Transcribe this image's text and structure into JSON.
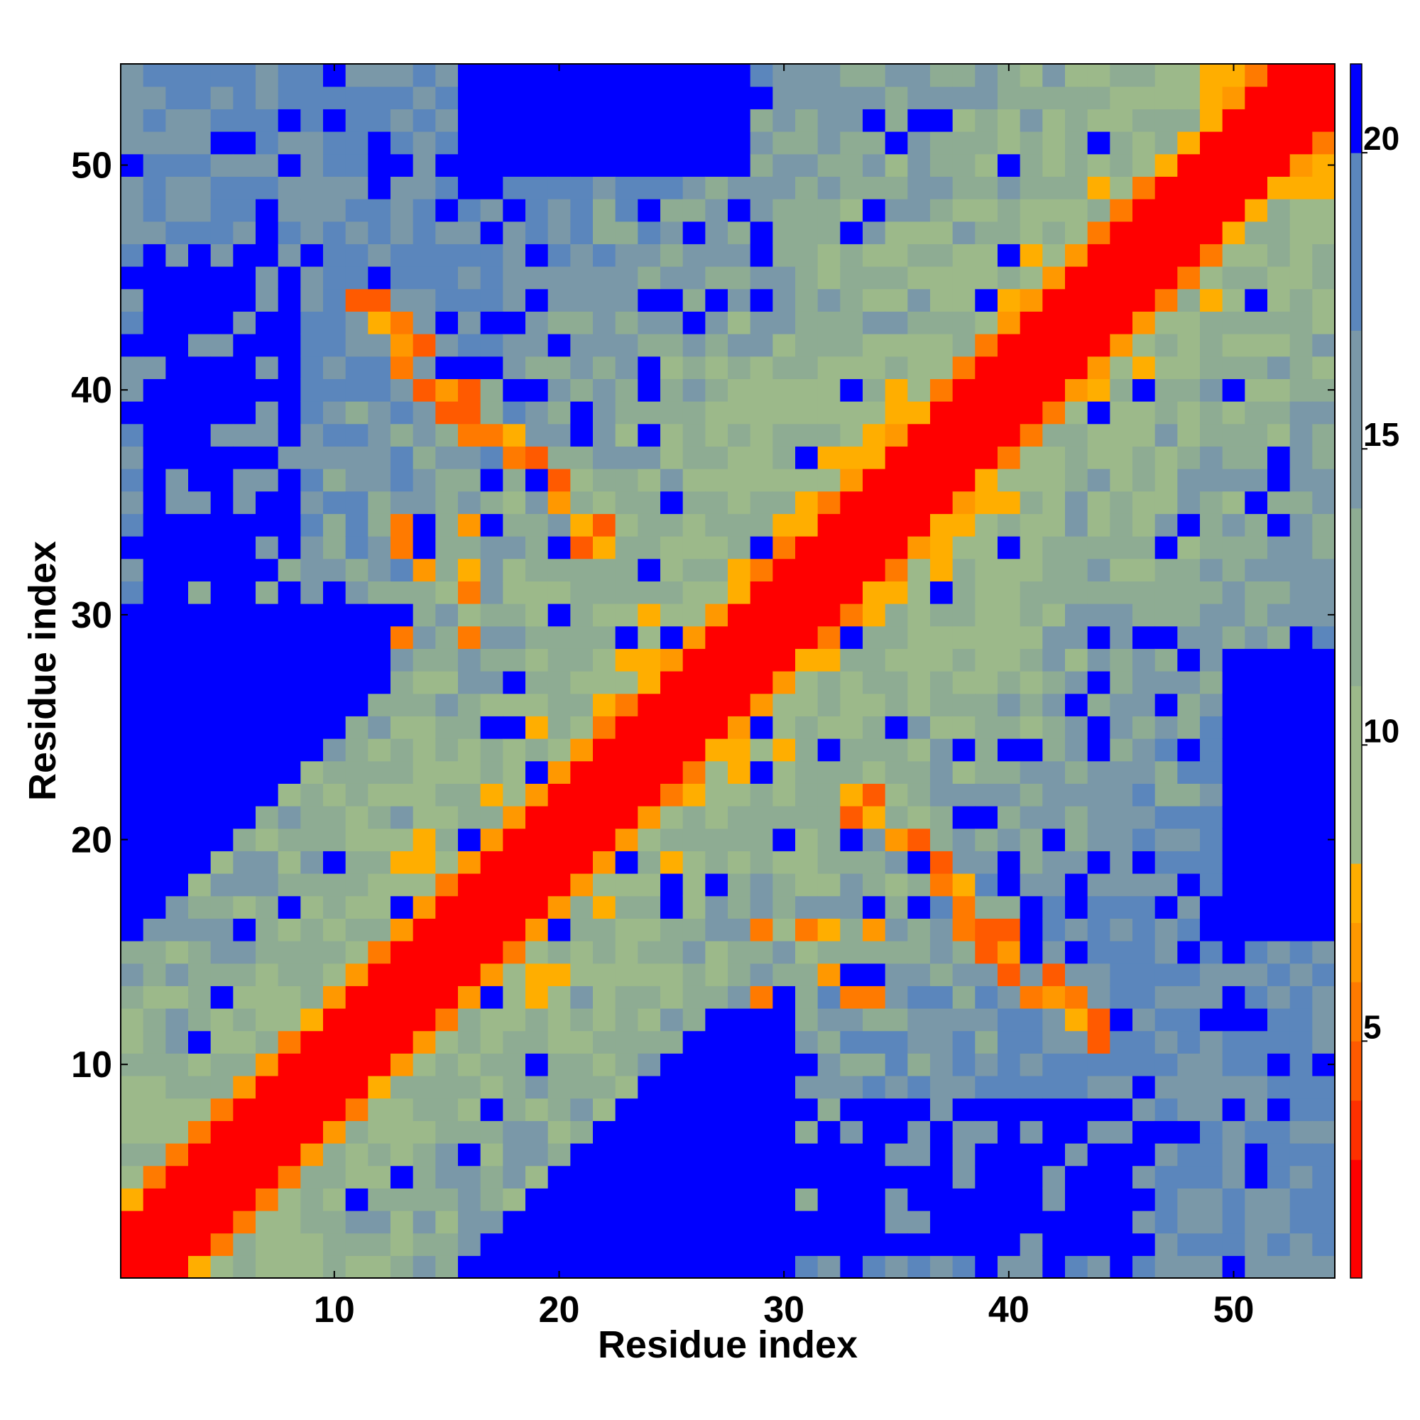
{
  "chart_data": {
    "type": "heatmap",
    "title": "",
    "xlabel": "Residue index",
    "ylabel": "Residue index",
    "n": 54,
    "xlim": [
      0.5,
      54.5
    ],
    "ylim": [
      0.5,
      54.5
    ],
    "x_ticks": [
      10,
      20,
      30,
      40,
      50
    ],
    "y_ticks": [
      10,
      20,
      30,
      40,
      50
    ],
    "colorbar": {
      "ticks": [
        5,
        10,
        15,
        20
      ],
      "range": [
        1,
        21.5
      ],
      "bands": [
        {
          "upper": 3,
          "color": "#ff0000"
        },
        {
          "upper": 4,
          "color": "#ff3000"
        },
        {
          "upper": 5,
          "color": "#ff5a00"
        },
        {
          "upper": 6,
          "color": "#ff7a00"
        },
        {
          "upper": 7,
          "color": "#ff9800"
        },
        {
          "upper": 8,
          "color": "#ffae00"
        },
        {
          "upper": 11,
          "color": "#9cb98a"
        },
        {
          "upper": 14,
          "color": "#8eac93"
        },
        {
          "upper": 17,
          "color": "#7a98a8"
        },
        {
          "upper": 20,
          "color": "#5b86bc"
        },
        {
          "upper": 21.5,
          "color": "#0000ff"
        }
      ]
    },
    "description_values": "symmetric residue-residue distance map; diagonal ~1, near-diagonal 3-7, background 9-20, far regions >20"
  }
}
